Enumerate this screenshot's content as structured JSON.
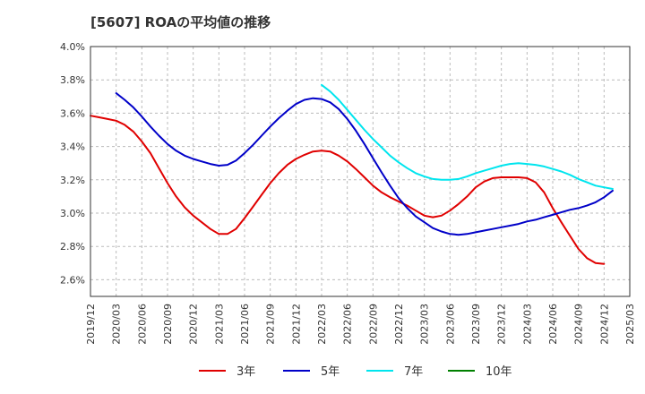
{
  "chart_data": {
    "type": "line",
    "title": "[5607]  ROAの平均値の推移",
    "xlabel": "",
    "ylabel": "",
    "ylim": [
      2.5,
      4.0
    ],
    "y_ticks": [
      "2.6%",
      "2.8%",
      "3.0%",
      "3.2%",
      "3.4%",
      "3.6%",
      "3.8%",
      "4.0%"
    ],
    "y_tick_values": [
      2.6,
      2.8,
      3.0,
      3.2,
      3.4,
      3.6,
      3.8,
      4.0
    ],
    "x_ticks": [
      "2019/12",
      "2020/03",
      "2020/06",
      "2020/09",
      "2020/12",
      "2021/03",
      "2021/06",
      "2021/09",
      "2021/12",
      "2022/03",
      "2022/06",
      "2022/09",
      "2022/12",
      "2023/03",
      "2023/06",
      "2023/09",
      "2023/12",
      "2024/03",
      "2024/06",
      "2024/09",
      "2024/12",
      "2025/03"
    ],
    "grid": "horizontal dashed",
    "legend_position": "bottom",
    "series": [
      {
        "name": "3年",
        "color": "#e00000",
        "points": [
          [
            "2019/12",
            3.585
          ],
          [
            "2020/01",
            3.575
          ],
          [
            "2020/02",
            3.565
          ],
          [
            "2020/03",
            3.555
          ],
          [
            "2020/04",
            3.53
          ],
          [
            "2020/05",
            3.49
          ],
          [
            "2020/06",
            3.43
          ],
          [
            "2020/07",
            3.36
          ],
          [
            "2020/08",
            3.27
          ],
          [
            "2020/09",
            3.18
          ],
          [
            "2020/10",
            3.1
          ],
          [
            "2020/11",
            3.035
          ],
          [
            "2020/12",
            2.985
          ],
          [
            "2021/01",
            2.945
          ],
          [
            "2021/02",
            2.905
          ],
          [
            "2021/03",
            2.875
          ],
          [
            "2021/04",
            2.875
          ],
          [
            "2021/05",
            2.905
          ],
          [
            "2021/06",
            2.97
          ],
          [
            "2021/07",
            3.04
          ],
          [
            "2021/08",
            3.11
          ],
          [
            "2021/09",
            3.18
          ],
          [
            "2021/10",
            3.24
          ],
          [
            "2021/11",
            3.29
          ],
          [
            "2021/12",
            3.325
          ],
          [
            "2022/01",
            3.35
          ],
          [
            "2022/02",
            3.37
          ],
          [
            "2022/03",
            3.375
          ],
          [
            "2022/04",
            3.37
          ],
          [
            "2022/05",
            3.345
          ],
          [
            "2022/06",
            3.31
          ],
          [
            "2022/07",
            3.265
          ],
          [
            "2022/08",
            3.215
          ],
          [
            "2022/09",
            3.165
          ],
          [
            "2022/10",
            3.125
          ],
          [
            "2022/11",
            3.095
          ],
          [
            "2022/12",
            3.07
          ],
          [
            "2023/01",
            3.045
          ],
          [
            "2023/02",
            3.015
          ],
          [
            "2023/03",
            2.985
          ],
          [
            "2023/04",
            2.975
          ],
          [
            "2023/05",
            2.985
          ],
          [
            "2023/06",
            3.015
          ],
          [
            "2023/07",
            3.055
          ],
          [
            "2023/08",
            3.1
          ],
          [
            "2023/09",
            3.155
          ],
          [
            "2023/10",
            3.19
          ],
          [
            "2023/11",
            3.21
          ],
          [
            "2023/12",
            3.215
          ],
          [
            "2024/01",
            3.215
          ],
          [
            "2024/02",
            3.215
          ],
          [
            "2024/03",
            3.21
          ],
          [
            "2024/04",
            3.185
          ],
          [
            "2024/05",
            3.125
          ],
          [
            "2024/06",
            3.03
          ],
          [
            "2024/07",
            2.945
          ],
          [
            "2024/08",
            2.865
          ],
          [
            "2024/09",
            2.785
          ],
          [
            "2024/10",
            2.73
          ],
          [
            "2024/11",
            2.7
          ],
          [
            "2024/12",
            2.695
          ]
        ]
      },
      {
        "name": "5年",
        "color": "#0000c8",
        "points": [
          [
            "2020/03",
            3.72
          ],
          [
            "2020/04",
            3.68
          ],
          [
            "2020/05",
            3.635
          ],
          [
            "2020/06",
            3.58
          ],
          [
            "2020/07",
            3.52
          ],
          [
            "2020/08",
            3.465
          ],
          [
            "2020/09",
            3.415
          ],
          [
            "2020/10",
            3.375
          ],
          [
            "2020/11",
            3.345
          ],
          [
            "2020/12",
            3.325
          ],
          [
            "2021/01",
            3.31
          ],
          [
            "2021/02",
            3.295
          ],
          [
            "2021/03",
            3.285
          ],
          [
            "2021/04",
            3.29
          ],
          [
            "2021/05",
            3.315
          ],
          [
            "2021/06",
            3.36
          ],
          [
            "2021/07",
            3.41
          ],
          [
            "2021/08",
            3.465
          ],
          [
            "2021/09",
            3.52
          ],
          [
            "2021/10",
            3.57
          ],
          [
            "2021/11",
            3.615
          ],
          [
            "2021/12",
            3.655
          ],
          [
            "2022/01",
            3.68
          ],
          [
            "2022/02",
            3.69
          ],
          [
            "2022/03",
            3.685
          ],
          [
            "2022/04",
            3.665
          ],
          [
            "2022/05",
            3.625
          ],
          [
            "2022/06",
            3.565
          ],
          [
            "2022/07",
            3.495
          ],
          [
            "2022/08",
            3.415
          ],
          [
            "2022/09",
            3.33
          ],
          [
            "2022/10",
            3.245
          ],
          [
            "2022/11",
            3.165
          ],
          [
            "2022/12",
            3.09
          ],
          [
            "2023/01",
            3.03
          ],
          [
            "2023/02",
            2.98
          ],
          [
            "2023/03",
            2.945
          ],
          [
            "2023/04",
            2.91
          ],
          [
            "2023/05",
            2.89
          ],
          [
            "2023/06",
            2.875
          ],
          [
            "2023/07",
            2.87
          ],
          [
            "2023/08",
            2.875
          ],
          [
            "2023/09",
            2.885
          ],
          [
            "2023/10",
            2.895
          ],
          [
            "2023/11",
            2.905
          ],
          [
            "2023/12",
            2.915
          ],
          [
            "2024/01",
            2.925
          ],
          [
            "2024/02",
            2.935
          ],
          [
            "2024/03",
            2.95
          ],
          [
            "2024/04",
            2.96
          ],
          [
            "2024/05",
            2.975
          ],
          [
            "2024/06",
            2.99
          ],
          [
            "2024/07",
            3.005
          ],
          [
            "2024/08",
            3.02
          ],
          [
            "2024/09",
            3.03
          ],
          [
            "2024/10",
            3.045
          ],
          [
            "2024/11",
            3.065
          ],
          [
            "2024/12",
            3.095
          ],
          [
            "2025/01",
            3.135
          ]
        ]
      },
      {
        "name": "7年",
        "color": "#00e5ee",
        "points": [
          [
            "2022/03",
            3.77
          ],
          [
            "2022/04",
            3.73
          ],
          [
            "2022/05",
            3.68
          ],
          [
            "2022/06",
            3.62
          ],
          [
            "2022/07",
            3.56
          ],
          [
            "2022/08",
            3.5
          ],
          [
            "2022/09",
            3.445
          ],
          [
            "2022/10",
            3.395
          ],
          [
            "2022/11",
            3.345
          ],
          [
            "2022/12",
            3.305
          ],
          [
            "2023/01",
            3.27
          ],
          [
            "2023/02",
            3.24
          ],
          [
            "2023/03",
            3.22
          ],
          [
            "2023/04",
            3.205
          ],
          [
            "2023/05",
            3.2
          ],
          [
            "2023/06",
            3.2
          ],
          [
            "2023/07",
            3.205
          ],
          [
            "2023/08",
            3.22
          ],
          [
            "2023/09",
            3.24
          ],
          [
            "2023/10",
            3.255
          ],
          [
            "2023/11",
            3.27
          ],
          [
            "2023/12",
            3.285
          ],
          [
            "2024/01",
            3.295
          ],
          [
            "2024/02",
            3.3
          ],
          [
            "2024/03",
            3.295
          ],
          [
            "2024/04",
            3.29
          ],
          [
            "2024/05",
            3.28
          ],
          [
            "2024/06",
            3.265
          ],
          [
            "2024/07",
            3.25
          ],
          [
            "2024/08",
            3.23
          ],
          [
            "2024/09",
            3.205
          ],
          [
            "2024/10",
            3.185
          ],
          [
            "2024/11",
            3.165
          ],
          [
            "2024/12",
            3.155
          ],
          [
            "2025/01",
            3.145
          ]
        ]
      },
      {
        "name": "10年",
        "color": "#008000",
        "points": []
      }
    ]
  }
}
